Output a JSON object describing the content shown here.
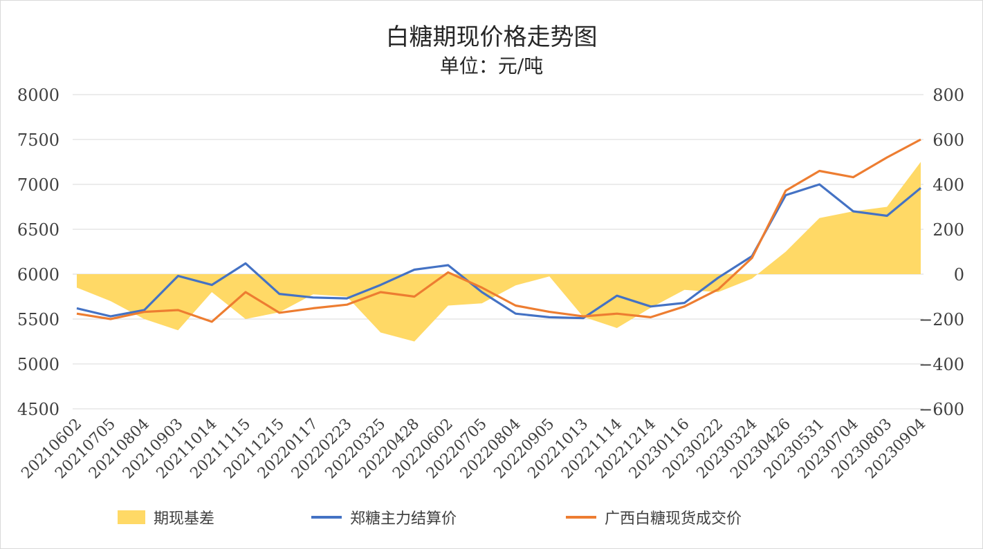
{
  "chart_data": {
    "type": "line",
    "title": "白糖期现价格走势图",
    "subtitle": "单位：元/吨",
    "categories": [
      "20210602",
      "20210705",
      "20210804",
      "20210903",
      "20211014",
      "20211115",
      "20211215",
      "20220117",
      "20220223",
      "20220325",
      "20220428",
      "20220602",
      "20220705",
      "20220804",
      "20220905",
      "20221013",
      "20221114",
      "20221214",
      "20230116",
      "20230222",
      "20230324",
      "20230426",
      "20230531",
      "20230704",
      "20230803",
      "20230904"
    ],
    "y_left": {
      "min": 4500,
      "max": 8000,
      "step": 500,
      "ticks": [
        "4500",
        "5000",
        "5500",
        "6000",
        "6500",
        "7000",
        "7500",
        "8000"
      ]
    },
    "y_right": {
      "min": -600,
      "max": 800,
      "step": 200,
      "ticks": [
        "−600",
        "−400",
        "−200",
        "0",
        "200",
        "400",
        "600",
        "800"
      ]
    },
    "grid": true,
    "legend_position": "bottom",
    "series": [
      {
        "name": "期现基差",
        "kind": "area",
        "axis": "right",
        "color": "#FFD966",
        "values": [
          -60,
          -120,
          -200,
          -250,
          -80,
          -200,
          -170,
          -90,
          -100,
          -260,
          -300,
          -140,
          -130,
          -50,
          -10,
          -190,
          -240,
          -150,
          -70,
          -80,
          -20,
          100,
          250,
          280,
          300,
          500
        ]
      },
      {
        "name": "郑糖主力结算价",
        "kind": "line",
        "axis": "left",
        "color": "#4472C4",
        "values": [
          5620,
          5530,
          5600,
          5980,
          5880,
          6120,
          5780,
          5740,
          5730,
          5880,
          6050,
          6100,
          5800,
          5560,
          5520,
          5510,
          5760,
          5640,
          5680,
          5960,
          6200,
          6880,
          7000,
          6700,
          6650,
          6960
        ]
      },
      {
        "name": "广西白糖现货成交价",
        "kind": "line",
        "axis": "left",
        "color": "#ED7D31",
        "values": [
          5560,
          5500,
          5580,
          5600,
          5470,
          5800,
          5570,
          5620,
          5660,
          5800,
          5750,
          6020,
          5850,
          5650,
          5580,
          5530,
          5560,
          5520,
          5640,
          5830,
          6180,
          6930,
          7150,
          7080,
          7300,
          7500
        ]
      }
    ]
  }
}
